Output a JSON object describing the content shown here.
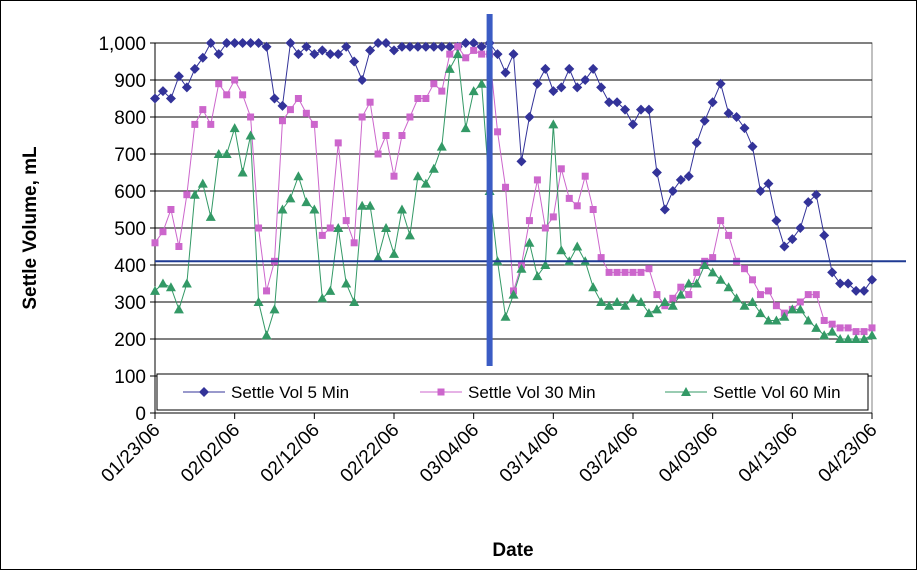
{
  "chart_data": {
    "type": "line",
    "y_label": "Settle Volume, mL",
    "x_label": "Date",
    "x": [
      "01/23/06",
      "01/24/06",
      "01/25/06",
      "01/26/06",
      "01/27/06",
      "01/28/06",
      "01/29/06",
      "01/30/06",
      "01/31/06",
      "02/01/06",
      "02/02/06",
      "02/03/06",
      "02/04/06",
      "02/05/06",
      "02/06/06",
      "02/07/06",
      "02/08/06",
      "02/09/06",
      "02/10/06",
      "02/11/06",
      "02/12/06",
      "02/13/06",
      "02/14/06",
      "02/15/06",
      "02/16/06",
      "02/17/06",
      "02/18/06",
      "02/19/06",
      "02/20/06",
      "02/21/06",
      "02/22/06",
      "02/23/06",
      "02/24/06",
      "02/25/06",
      "02/26/06",
      "02/27/06",
      "02/28/06",
      "03/01/06",
      "03/02/06",
      "03/03/06",
      "03/04/06",
      "03/05/06",
      "03/06/06",
      "03/07/06",
      "03/08/06",
      "03/09/06",
      "03/10/06",
      "03/11/06",
      "03/12/06",
      "03/13/06",
      "03/14/06",
      "03/15/06",
      "03/16/06",
      "03/17/06",
      "03/18/06",
      "03/19/06",
      "03/20/06",
      "03/21/06",
      "03/22/06",
      "03/23/06",
      "03/24/06",
      "03/25/06",
      "03/26/06",
      "03/27/06",
      "03/28/06",
      "03/29/06",
      "03/30/06",
      "03/31/06",
      "04/01/06",
      "04/02/06",
      "04/03/06",
      "04/04/06",
      "04/05/06",
      "04/06/06",
      "04/07/06",
      "04/08/06",
      "04/09/06",
      "04/10/06",
      "04/11/06",
      "04/12/06",
      "04/13/06",
      "04/14/06",
      "04/15/06",
      "04/16/06",
      "04/17/06",
      "04/18/06",
      "04/19/06",
      "04/20/06",
      "04/21/06",
      "04/22/06",
      "04/23/06"
    ],
    "series": [
      {
        "name": "Settle Vol 5 Min",
        "color": "#333399",
        "marker": "diamond",
        "values": [
          850,
          870,
          850,
          910,
          880,
          930,
          960,
          1000,
          970,
          1000,
          1000,
          1000,
          1000,
          1000,
          990,
          850,
          830,
          1000,
          970,
          990,
          970,
          980,
          970,
          970,
          990,
          950,
          900,
          980,
          1000,
          1000,
          980,
          990,
          990,
          990,
          990,
          990,
          990,
          990,
          990,
          1000,
          1000,
          990,
          1000,
          970,
          920,
          970,
          680,
          800,
          890,
          930,
          870,
          880,
          930,
          880,
          900,
          930,
          880,
          840,
          840,
          820,
          780,
          820,
          820,
          650,
          550,
          600,
          630,
          640,
          730,
          790,
          840,
          890,
          810,
          800,
          770,
          720,
          600,
          620,
          520,
          450,
          470,
          500,
          570,
          590,
          480,
          380,
          350,
          350,
          330,
          330,
          360
        ]
      },
      {
        "name": "Settle Vol 30 Min",
        "color": "#cc66cc",
        "marker": "square",
        "values": [
          460,
          490,
          550,
          450,
          590,
          780,
          820,
          780,
          890,
          860,
          900,
          860,
          800,
          500,
          330,
          410,
          790,
          820,
          850,
          810,
          780,
          480,
          500,
          730,
          520,
          460,
          800,
          840,
          700,
          750,
          640,
          750,
          800,
          850,
          850,
          890,
          870,
          970,
          990,
          960,
          980,
          970,
          970,
          760,
          610,
          330,
          400,
          520,
          630,
          500,
          530,
          660,
          580,
          560,
          640,
          550,
          420,
          380,
          380,
          380,
          380,
          380,
          390,
          320,
          290,
          310,
          340,
          320,
          380,
          410,
          420,
          520,
          480,
          410,
          390,
          360,
          320,
          330,
          290,
          270,
          280,
          300,
          320,
          320,
          250,
          240,
          230,
          230,
          220,
          220,
          230
        ]
      },
      {
        "name": "Settle Vol 60 Min",
        "color": "#339966",
        "marker": "triangle",
        "values": [
          330,
          350,
          340,
          280,
          350,
          590,
          620,
          530,
          700,
          700,
          770,
          650,
          750,
          300,
          210,
          280,
          550,
          580,
          640,
          570,
          550,
          310,
          330,
          500,
          350,
          300,
          560,
          560,
          420,
          500,
          430,
          550,
          480,
          640,
          620,
          660,
          720,
          930,
          970,
          770,
          870,
          890,
          600,
          410,
          260,
          320,
          390,
          460,
          370,
          400,
          780,
          440,
          410,
          450,
          410,
          340,
          300,
          290,
          300,
          290,
          310,
          300,
          270,
          280,
          300,
          290,
          320,
          350,
          350,
          400,
          380,
          360,
          340,
          310,
          290,
          300,
          270,
          250,
          250,
          260,
          280,
          280,
          250,
          230,
          210,
          220,
          200,
          200,
          200,
          200,
          210
        ]
      }
    ],
    "xlim": [
      "01/23/06",
      "04/23/06"
    ],
    "xticks": [
      "01/23/06",
      "02/02/06",
      "02/12/06",
      "02/22/06",
      "03/04/06",
      "03/14/06",
      "03/24/06",
      "04/03/06",
      "04/13/06",
      "04/23/06"
    ],
    "ylim": [
      0,
      1000
    ],
    "yticks": [
      0,
      100,
      200,
      300,
      400,
      500,
      600,
      700,
      800,
      900,
      {
        "value": 1000,
        "label": "1,000"
      }
    ],
    "grid": true,
    "hline": 410,
    "vline": "03/06/06",
    "legend": "bottom"
  }
}
